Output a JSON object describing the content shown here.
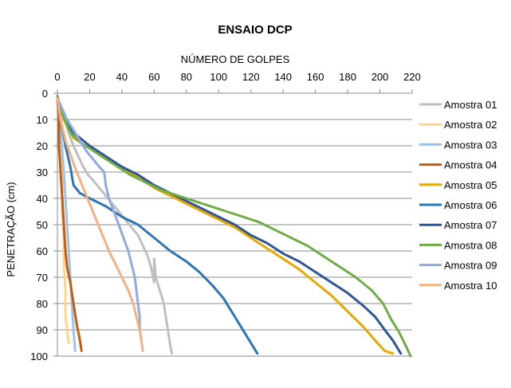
{
  "chart_data": {
    "type": "line",
    "title": "ENSAIO DCP",
    "xlabel": "NÚMERO DE GOLPES",
    "ylabel": "PENETRAÇÃO (cm)",
    "xlim": [
      0,
      220
    ],
    "ylim": [
      0,
      100
    ],
    "y_inverted": true,
    "x_axis_position": "top",
    "x_ticks": [
      "0",
      "20",
      "40",
      "60",
      "80",
      "100",
      "120",
      "140",
      "160",
      "180",
      "200",
      "220"
    ],
    "y_ticks": [
      "0",
      "10",
      "20",
      "30",
      "40",
      "50",
      "60",
      "70",
      "80",
      "90",
      "100"
    ],
    "grid": "horizontal",
    "legend_position": "right",
    "series": [
      {
        "name": "Amostra 01",
        "color": "#bfbfbf",
        "points": [
          [
            0,
            2
          ],
          [
            2,
            6
          ],
          [
            4,
            9
          ],
          [
            6,
            13
          ],
          [
            8,
            17
          ],
          [
            10,
            20
          ],
          [
            13,
            24
          ],
          [
            16,
            28
          ],
          [
            19,
            31
          ],
          [
            22,
            33
          ],
          [
            26,
            36
          ],
          [
            30,
            39
          ],
          [
            34,
            42
          ],
          [
            38,
            45
          ],
          [
            42,
            48
          ],
          [
            46,
            51
          ],
          [
            50,
            54
          ],
          [
            53,
            58
          ],
          [
            56,
            62
          ],
          [
            58,
            66
          ],
          [
            59,
            69
          ],
          [
            60,
            72
          ],
          [
            60,
            63
          ],
          [
            61,
            70
          ],
          [
            62,
            72
          ],
          [
            64,
            76
          ],
          [
            66,
            80
          ],
          [
            67,
            84
          ],
          [
            68,
            88
          ],
          [
            69,
            92
          ],
          [
            70,
            96
          ],
          [
            71,
            99
          ]
        ]
      },
      {
        "name": "Amostra 02",
        "color": "#ffd58a",
        "points": [
          [
            0,
            3
          ],
          [
            1,
            8
          ],
          [
            2,
            15
          ],
          [
            2,
            25
          ],
          [
            3,
            35
          ],
          [
            3,
            45
          ],
          [
            4,
            55
          ],
          [
            4,
            65
          ],
          [
            5,
            75
          ],
          [
            5,
            85
          ],
          [
            6,
            90
          ],
          [
            7,
            95
          ]
        ]
      },
      {
        "name": "Amostra 03",
        "color": "#9dc3e6",
        "points": [
          [
            0,
            2
          ],
          [
            1,
            8
          ],
          [
            2,
            14
          ],
          [
            3,
            22
          ],
          [
            4,
            30
          ],
          [
            5,
            40
          ],
          [
            6,
            50
          ],
          [
            7,
            60
          ],
          [
            8,
            70
          ],
          [
            9,
            80
          ],
          [
            10,
            90
          ],
          [
            11,
            98
          ]
        ]
      },
      {
        "name": "Amostra 04",
        "color": "#c55a11",
        "points": [
          [
            0,
            2
          ],
          [
            1,
            10
          ],
          [
            1,
            20
          ],
          [
            2,
            30
          ],
          [
            3,
            40
          ],
          [
            4,
            50
          ],
          [
            5,
            60
          ],
          [
            6,
            66
          ],
          [
            8,
            72
          ],
          [
            10,
            80
          ],
          [
            12,
            88
          ],
          [
            14,
            94
          ],
          [
            15,
            98
          ]
        ]
      },
      {
        "name": "Amostra 05",
        "color": "#e6a800",
        "points": [
          [
            0,
            2
          ],
          [
            4,
            10
          ],
          [
            10,
            17
          ],
          [
            20,
            21
          ],
          [
            30,
            25
          ],
          [
            40,
            28
          ],
          [
            50,
            32
          ],
          [
            60,
            36
          ],
          [
            70,
            39
          ],
          [
            80,
            42
          ],
          [
            90,
            45
          ],
          [
            100,
            48
          ],
          [
            110,
            51
          ],
          [
            120,
            55
          ],
          [
            130,
            59
          ],
          [
            140,
            63
          ],
          [
            150,
            67
          ],
          [
            160,
            72
          ],
          [
            170,
            77
          ],
          [
            180,
            83
          ],
          [
            190,
            89
          ],
          [
            197,
            94
          ],
          [
            203,
            98
          ],
          [
            208,
            99
          ]
        ]
      },
      {
        "name": "Amostra 06",
        "color": "#2e75b6",
        "points": [
          [
            0,
            2
          ],
          [
            2,
            10
          ],
          [
            5,
            20
          ],
          [
            8,
            28
          ],
          [
            10,
            35
          ],
          [
            14,
            38
          ],
          [
            20,
            40
          ],
          [
            30,
            43
          ],
          [
            40,
            47
          ],
          [
            50,
            50
          ],
          [
            60,
            55
          ],
          [
            70,
            60
          ],
          [
            80,
            64
          ],
          [
            88,
            68
          ],
          [
            96,
            73
          ],
          [
            103,
            78
          ],
          [
            109,
            84
          ],
          [
            114,
            89
          ],
          [
            118,
            93
          ],
          [
            121,
            96
          ],
          [
            124,
            99
          ]
        ]
      },
      {
        "name": "Amostra 07",
        "color": "#2f5597",
        "points": [
          [
            0,
            2
          ],
          [
            5,
            10
          ],
          [
            10,
            15
          ],
          [
            20,
            20
          ],
          [
            30,
            24
          ],
          [
            40,
            28
          ],
          [
            50,
            31
          ],
          [
            60,
            35
          ],
          [
            70,
            38
          ],
          [
            80,
            41
          ],
          [
            90,
            44
          ],
          [
            100,
            47
          ],
          [
            110,
            50
          ],
          [
            120,
            54
          ],
          [
            130,
            57
          ],
          [
            140,
            61
          ],
          [
            150,
            64
          ],
          [
            160,
            68
          ],
          [
            170,
            72
          ],
          [
            180,
            76
          ],
          [
            190,
            81
          ],
          [
            197,
            85
          ],
          [
            203,
            90
          ],
          [
            208,
            94
          ],
          [
            213,
            99
          ]
        ]
      },
      {
        "name": "Amostra 08",
        "color": "#70ad47",
        "points": [
          [
            0,
            1
          ],
          [
            3,
            8
          ],
          [
            8,
            15
          ],
          [
            15,
            19
          ],
          [
            25,
            23
          ],
          [
            35,
            27
          ],
          [
            45,
            31
          ],
          [
            55,
            34
          ],
          [
            65,
            37
          ],
          [
            75,
            39
          ],
          [
            85,
            41
          ],
          [
            95,
            43
          ],
          [
            105,
            45
          ],
          [
            115,
            47
          ],
          [
            125,
            49
          ],
          [
            135,
            52
          ],
          [
            145,
            55
          ],
          [
            155,
            58
          ],
          [
            165,
            62
          ],
          [
            175,
            66
          ],
          [
            185,
            70
          ],
          [
            195,
            75
          ],
          [
            202,
            80
          ],
          [
            207,
            86
          ],
          [
            212,
            91
          ],
          [
            216,
            96
          ],
          [
            219,
            100
          ]
        ]
      },
      {
        "name": "Amostra 09",
        "color": "#8faadc",
        "points": [
          [
            0,
            2
          ],
          [
            3,
            6
          ],
          [
            6,
            10
          ],
          [
            10,
            14
          ],
          [
            14,
            18
          ],
          [
            18,
            22
          ],
          [
            22,
            25
          ],
          [
            26,
            28
          ],
          [
            29,
            30
          ],
          [
            30,
            35
          ],
          [
            32,
            40
          ],
          [
            35,
            45
          ],
          [
            38,
            50
          ],
          [
            41,
            55
          ],
          [
            44,
            60
          ],
          [
            46,
            65
          ],
          [
            48,
            70
          ],
          [
            49,
            75
          ],
          [
            50,
            80
          ],
          [
            51,
            85
          ],
          [
            51,
            90
          ],
          [
            52,
            93
          ]
        ]
      },
      {
        "name": "Amostra 10",
        "color": "#f4b183",
        "points": [
          [
            0,
            2
          ],
          [
            2,
            10
          ],
          [
            5,
            18
          ],
          [
            9,
            25
          ],
          [
            12,
            30
          ],
          [
            16,
            36
          ],
          [
            20,
            42
          ],
          [
            24,
            48
          ],
          [
            28,
            54
          ],
          [
            32,
            60
          ],
          [
            36,
            65
          ],
          [
            40,
            70
          ],
          [
            44,
            75
          ],
          [
            47,
            80
          ],
          [
            49,
            85
          ],
          [
            51,
            90
          ],
          [
            52,
            94
          ],
          [
            53,
            98
          ]
        ]
      }
    ]
  }
}
